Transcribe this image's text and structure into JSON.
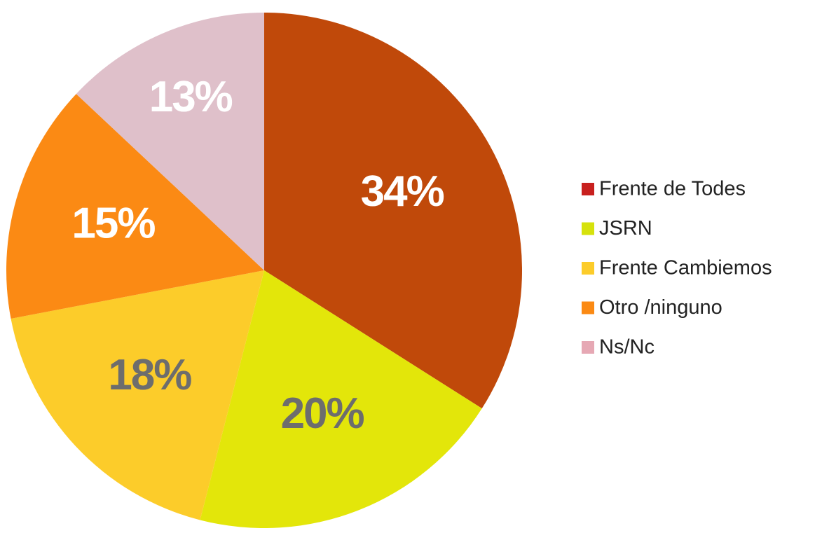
{
  "chart_data": {
    "type": "pie",
    "categories": [
      "Frente de Todes",
      "JSRN",
      "Frente Cambiemos",
      "Otro /ninguno",
      "Ns/Nc"
    ],
    "values": [
      34,
      20,
      18,
      15,
      13
    ],
    "value_labels": [
      "34%",
      "20%",
      "18%",
      "15%",
      "13%"
    ],
    "colors": [
      "#c0490a",
      "#e3e60a",
      "#fccc2a",
      "#fb8a14",
      "#dfc0ca"
    ],
    "legend_colors": [
      "#c8201e",
      "#d6e20c",
      "#fccc2a",
      "#fb8a14",
      "#e6a8b4"
    ],
    "value_label_colors": [
      "#ffffff",
      "#6d6d6d",
      "#6d6d6d",
      "#ffffff",
      "#ffffff"
    ],
    "legend": "right"
  }
}
